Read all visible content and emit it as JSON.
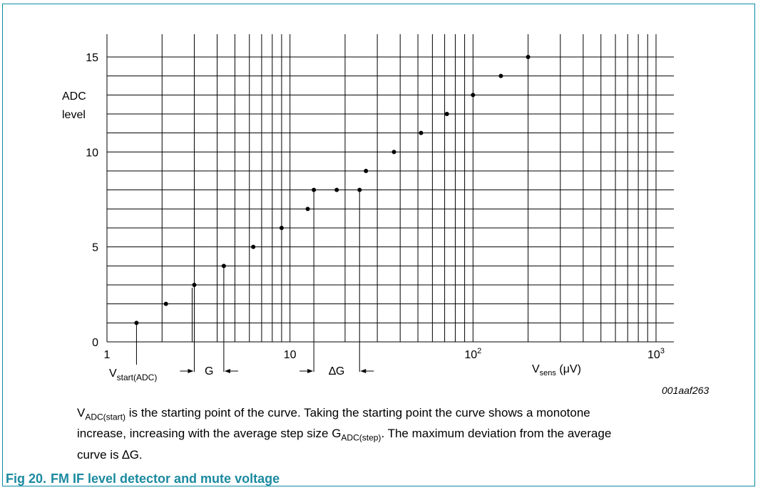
{
  "chart_data": {
    "type": "scatter",
    "x_scale": "log",
    "xlim": [
      1,
      1000
    ],
    "ylim": [
      0,
      15
    ],
    "grid": true,
    "x_ticks": [
      "1",
      "10",
      "10",
      "10"
    ],
    "x_tick_exponents": [
      "",
      "",
      "2",
      "3"
    ],
    "y_ticks": [
      "0",
      "5",
      "10",
      "15"
    ],
    "ylabel_lines": [
      "ADC",
      "level"
    ],
    "xlabel_main": "V",
    "xlabel_sub": "sens",
    "xlabel_unit": " (μV)",
    "points": [
      {
        "x": 1.45,
        "y": 1
      },
      {
        "x": 2.1,
        "y": 2
      },
      {
        "x": 3.0,
        "y": 3
      },
      {
        "x": 4.35,
        "y": 4
      },
      {
        "x": 6.3,
        "y": 5
      },
      {
        "x": 9.0,
        "y": 6
      },
      {
        "x": 12.5,
        "y": 7
      },
      {
        "x": 13.5,
        "y": 8
      },
      {
        "x": 18.0,
        "y": 8
      },
      {
        "x": 24.0,
        "y": 8
      },
      {
        "x": 26.0,
        "y": 9
      },
      {
        "x": 37.0,
        "y": 10
      },
      {
        "x": 52.0,
        "y": 11
      },
      {
        "x": 72.0,
        "y": 12
      },
      {
        "x": 100.0,
        "y": 13
      },
      {
        "x": 142.0,
        "y": 14
      },
      {
        "x": 200.0,
        "y": 15
      }
    ],
    "annotations": {
      "vstart_main": "V",
      "vstart_sub": "start(ADC)",
      "g_label": "G",
      "dg_label": "∆G",
      "figure_id": "001aaf263"
    }
  },
  "caption": {
    "p1_v": "V",
    "p1_sub": "ADC(start)",
    "p1_text": " is the starting point of the curve. Taking the starting point the curve shows a monotone increase, increasing with the average step size G",
    "p1_sub2": "ADC(step)",
    "p1_text2": ". The maximum deviation from the average curve is ∆G."
  },
  "figure": {
    "number": "Fig 20.",
    "title": "FM IF level detector and mute voltage"
  },
  "colors": {
    "accent": "#1b8aa0",
    "border": "#0b8aa3"
  }
}
